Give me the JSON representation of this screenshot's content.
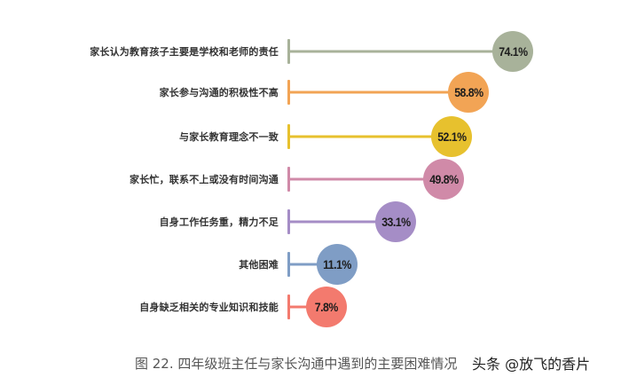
{
  "chart_data": {
    "type": "bar",
    "orientation": "horizontal",
    "style": "lollipop",
    "title": "图 22. 四年级班主任与家长沟通中遇到的主要困难情况",
    "xlabel": "",
    "ylabel": "",
    "unit": "%",
    "grid": false,
    "legend": null,
    "categories": [
      "家长认为教育孩子主要是学校和老师的责任",
      "家长参与沟通的积极性不高",
      "与家长教育理念不一致",
      "家长忙，联系不上或没有时间沟通",
      "自身工作任务重，精力不足",
      "其他困难",
      "自身缺乏相关的专业知识和技能"
    ],
    "values": [
      74.1,
      58.8,
      52.1,
      49.8,
      33.1,
      11.1,
      7.8
    ],
    "colors": [
      "#a8b29a",
      "#f2a455",
      "#e7c12e",
      "#d08aa8",
      "#a58dc6",
      "#7f9dc5",
      "#f37a6e"
    ]
  },
  "rows": [
    {
      "label": "家长认为教育孩子主要是学校和老师的责任",
      "value_text": "74.1%",
      "color": "#a8b29a"
    },
    {
      "label": "家长参与沟通的积极性不高",
      "value_text": "58.8%",
      "color": "#f2a455"
    },
    {
      "label": "与家长教育理念不一致",
      "value_text": "52.1%",
      "color": "#e7c12e"
    },
    {
      "label": "家长忙，联系不上或没有时间沟通",
      "value_text": "49.8%",
      "color": "#d08aa8"
    },
    {
      "label": "自身工作任务重，精力不足",
      "value_text": "33.1%",
      "color": "#a58dc6"
    },
    {
      "label": "其他困难",
      "value_text": "11.1%",
      "color": "#7f9dc5"
    },
    {
      "label": "自身缺乏相关的专业知识和技能",
      "value_text": "7.8%",
      "color": "#f37a6e"
    }
  ],
  "caption": "图 22. 四年级班主任与家长沟通中遇到的主要困难情况",
  "watermark": "头条 @放飞的香片"
}
